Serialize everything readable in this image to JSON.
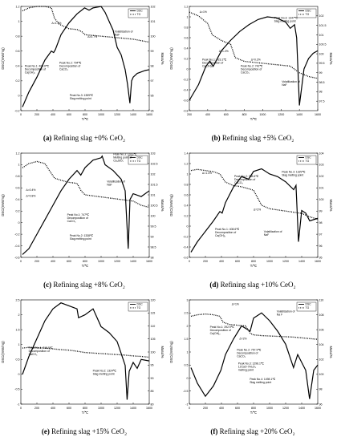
{
  "chart_data": [
    {
      "type": "line",
      "caption_id": "(a)",
      "caption": "Refining slag +0% CeO₂",
      "xlabel": "T/℃",
      "ylabel_left": "DSC/(mW/mg)",
      "ylabel_right": "Mass/%",
      "xlim": [
        0,
        1600
      ],
      "xticks": [
        "0",
        "200",
        "400",
        "600",
        "800",
        "1000",
        "1200",
        "1400",
        "1600"
      ],
      "ylim_left": [
        -0.2,
        1.2
      ],
      "yticks_left": [
        "-0.2",
        "0",
        "0.2",
        "0.4",
        "0.6",
        "0.8",
        "1",
        "1.2"
      ],
      "ylim_right": [
        95,
        102
      ],
      "yticks_right": [
        "95",
        "96",
        "97",
        "98",
        "99",
        "100",
        "101",
        "102"
      ],
      "legend": [
        "DSC",
        "TG"
      ],
      "series": [
        {
          "name": "DSC",
          "style": "solid",
          "axis": "left",
          "x": [
            20,
            100,
            200,
            300,
            380,
            408.6,
            430,
            500,
            600,
            700,
            794,
            850,
            900,
            1000,
            1050,
            1100,
            1150,
            1200,
            1250,
            1300,
            1330,
            1359,
            1380,
            1400,
            1450,
            1500,
            1550,
            1600
          ],
          "y": [
            -0.15,
            0.05,
            0.25,
            0.48,
            0.6,
            0.58,
            0.62,
            0.82,
            0.98,
            1.1,
            1.18,
            1.15,
            1.18,
            1.2,
            1.12,
            1.0,
            0.88,
            0.65,
            0.55,
            0.35,
            0.15,
            -0.1,
            0.2,
            0.25,
            0.3,
            0.32,
            0.34,
            0.35
          ]
        },
        {
          "name": "TG",
          "style": "dotted",
          "axis": "right",
          "x": [
            20,
            100,
            200,
            300,
            380,
            420,
            480,
            600,
            700,
            760,
            800,
            900,
            1000,
            1100,
            1200,
            1300,
            1400,
            1500,
            1600
          ],
          "y": [
            101.7,
            101.9,
            102.0,
            102.0,
            101.9,
            101.2,
            100.8,
            100.5,
            100.45,
            100.3,
            100.1,
            100.05,
            100.0,
            99.95,
            99.9,
            99.85,
            99.8,
            99.7,
            99.6
          ]
        }
      ],
      "annotations": [
        "Δ=1.3%",
        "Δ=0.7%",
        "Volatilization of NaF",
        "Peak No.2: 794℃ Decomposition of CaCO₃",
        "Peak No.1: 408.6℃ Decomposition of Ca(OH)₂",
        "Peak No.3: 1359℃ Slag melting point"
      ]
    },
    {
      "type": "line",
      "caption_id": "(b)",
      "caption": "Refining slag +5% CeO₂",
      "xlabel": "T/℃",
      "ylabel_left": "DSC/(mW/mg)",
      "ylabel_right": "Mass/%",
      "xlim": [
        200,
        1600
      ],
      "xticks": [
        "200",
        "400",
        "600",
        "800",
        "1000",
        "1200",
        "1400",
        "1600"
      ],
      "ylim_left": [
        -0.8,
        1.2
      ],
      "yticks_left": [
        "-0.8",
        "-0.6",
        "-0.4",
        "-0.2",
        "0",
        "0.2",
        "0.4",
        "0.6",
        "0.8",
        "1",
        "1.2"
      ],
      "ylim_right": [
        97,
        102.5
      ],
      "yticks_right": [
        "97.5",
        "98",
        "98.5",
        "99",
        "99.5",
        "100",
        "100.5",
        "101",
        "101.5",
        "102"
      ],
      "legend": [
        "DSC",
        "TG"
      ],
      "series": [
        {
          "name": "DSC",
          "style": "solid",
          "axis": "left",
          "x": [
            200,
            300,
            380,
            423.1,
            460,
            550,
            650,
            750,
            850,
            950,
            1050,
            1150,
            1250,
            1300,
            1347,
            1370,
            1400,
            1450,
            1500,
            1550,
            1600
          ],
          "y": [
            -0.6,
            -0.3,
            0.05,
            0.15,
            0.05,
            0.35,
            0.55,
            0.72,
            0.85,
            0.95,
            1.0,
            0.98,
            0.9,
            0.78,
            0.85,
            0.6,
            -0.7,
            0.0,
            0.2,
            0.3,
            0.35
          ]
        },
        {
          "name": "TG",
          "style": "dotted",
          "axis": "right",
          "x": [
            200,
            300,
            400,
            450,
            550,
            650,
            700,
            800,
            900,
            1000,
            1100,
            1200,
            1300,
            1400,
            1500,
            1600
          ],
          "y": [
            102.2,
            102.0,
            101.6,
            101.0,
            100.7,
            100.5,
            99.8,
            99.6,
            99.55,
            99.5,
            99.45,
            99.4,
            99.35,
            99.0,
            98.8,
            98.7
          ]
        }
      ],
      "annotations": [
        "Δ=1%",
        "Δ=1.2%",
        "Peak No.3: 1347℃ Slag melting point",
        "Peak No.1: 423.1℃ Decomposition of Ca(OH)₂",
        "Peak No.2: 742℃ Decomposition of CaCO₃",
        "Volatilization of NaF",
        "Δ=0.2%"
      ]
    },
    {
      "type": "line",
      "caption_id": "(c)",
      "caption": "Refining slag +8% CeO₂",
      "xlabel": "T/℃",
      "ylabel_left": "DSC/(mW/mg)",
      "ylabel_right": "Mass/%",
      "xlim": [
        0,
        1600
      ],
      "xticks": [
        "0",
        "200",
        "400",
        "600",
        "800",
        "1000",
        "1200",
        "1400",
        "1600"
      ],
      "ylim_left": [
        -0.6,
        1.2
      ],
      "yticks_left": [
        "-0.6",
        "-0.4",
        "-0.2",
        "0",
        "0.2",
        "0.4",
        "0.6",
        "0.8",
        "1",
        "1.2"
      ],
      "ylim_right": [
        98,
        103
      ],
      "yticks_right": [
        "98",
        "98.5",
        "99",
        "99.5",
        "100",
        "100.5",
        "101",
        "101.5",
        "102",
        "102.5",
        "103"
      ],
      "legend": [
        "DSC",
        "TG"
      ],
      "series": [
        {
          "name": "DSC",
          "style": "solid",
          "axis": "left",
          "x": [
            20,
            100,
            200,
            300,
            400,
            500,
            600,
            700,
            747,
            800,
            900,
            1000,
            1013,
            1050,
            1150,
            1250,
            1300,
            1338,
            1360,
            1400,
            1500,
            1600
          ],
          "y": [
            -0.55,
            -0.45,
            -0.2,
            0.05,
            0.3,
            0.55,
            0.75,
            0.9,
            0.82,
            0.95,
            1.08,
            1.12,
            1.15,
            1.0,
            0.9,
            0.75,
            0.55,
            -0.45,
            0.4,
            0.5,
            0.45,
            0.55
          ]
        },
        {
          "name": "TG",
          "style": "dotted",
          "axis": "right",
          "x": [
            20,
            100,
            200,
            300,
            350,
            420,
            500,
            600,
            700,
            750,
            800,
            900,
            1000,
            1100,
            1200,
            1300,
            1400,
            1500,
            1600
          ],
          "y": [
            102.3,
            102.5,
            102.6,
            102.5,
            102.2,
            101.8,
            101.7,
            101.6,
            101.55,
            101.2,
            101.0,
            100.95,
            100.9,
            100.85,
            100.8,
            100.75,
            100.7,
            100.5,
            100.4
          ]
        }
      ],
      "annotations": [
        "Peak No.3: 1013℃ Melting point of Ca₃SiO₅",
        "Volatilization of NaF",
        "Δ=0.4%",
        "Δ=0.8%",
        "Peak No.1: 747℃ Decomposition of CaCO₃",
        "Peak No.2: 1338℃ Slag melting point"
      ]
    },
    {
      "type": "line",
      "caption_id": "(d)",
      "caption": "Refining slag +10% CeO₂",
      "xlabel": "T/℃",
      "ylabel_left": "DSC/(mW/mg)",
      "ylabel_right": "Mass/%",
      "xlim": [
        0,
        1600
      ],
      "xticks": [
        "0",
        "200",
        "400",
        "600",
        "800",
        "1000",
        "1200",
        "1400",
        "1600"
      ],
      "ylim_left": [
        -0.6,
        1.4
      ],
      "yticks_left": [
        "-0.6",
        "-0.4",
        "-0.2",
        "0",
        "0.2",
        "0.4",
        "0.6",
        "0.8",
        "1",
        "1.2",
        "1.4"
      ],
      "ylim_right": [
        95,
        104
      ],
      "yticks_right": [
        "95",
        "96",
        "97",
        "98",
        "99",
        "100",
        "101",
        "102",
        "103",
        "104"
      ],
      "legend": [
        "DSC",
        "TG"
      ],
      "series": [
        {
          "name": "DSC",
          "style": "solid",
          "axis": "left",
          "x": [
            20,
            100,
            200,
            300,
            380,
            408.6,
            450,
            550,
            650,
            738.6,
            800,
            900,
            1000,
            1100,
            1200,
            1300,
            1329,
            1360,
            1400,
            1450,
            1500,
            1600
          ],
          "y": [
            -0.5,
            -0.3,
            -0.1,
            0.1,
            0.28,
            0.25,
            0.45,
            0.75,
            0.95,
            0.9,
            1.05,
            1.1,
            1.0,
            0.95,
            0.85,
            0.7,
            0.78,
            -0.3,
            0.3,
            0.25,
            0.1,
            0.15
          ]
        },
        {
          "name": "TG",
          "style": "dotted",
          "axis": "right",
          "x": [
            20,
            100,
            200,
            300,
            380,
            450,
            550,
            650,
            700,
            800,
            900,
            1000,
            1100,
            1200,
            1300,
            1400,
            1500,
            1600
          ],
          "y": [
            102.5,
            102.6,
            102.5,
            102.4,
            102.2,
            101.5,
            101.2,
            101.1,
            101.0,
            100.8,
            99.5,
            99.2,
            99.1,
            99.0,
            98.9,
            98.8,
            98.5,
            98.3
          ]
        }
      ],
      "annotations": [
        "Δ=1.4%",
        "Peak No.2: 738.6℃ Decomposition of CaCO₃",
        "Peak No.3: 1329℃ Slag melting point",
        "Δ=2%",
        "Peak No.1: 408.6℃ Decomposition of Ca(OH)₂",
        "Volatilization of NaF"
      ]
    },
    {
      "type": "line",
      "caption_id": "(e)",
      "caption": "Refining slag +15% CeO₂",
      "xlabel": "T/℃",
      "ylabel_left": "DSC/(mW/mg)",
      "ylabel_right": "Mass/%",
      "xlim": [
        0,
        1600
      ],
      "xticks": [
        "0",
        "200",
        "400",
        "600",
        "800",
        "1000",
        "1200",
        "1400",
        "1600"
      ],
      "ylim_left": [
        -1,
        2.5
      ],
      "yticks_left": [
        "-1",
        "-0.5",
        "0",
        "0.5",
        "1",
        "1.5",
        "2",
        "2.5"
      ],
      "ylim_right": [
        80,
        120
      ],
      "yticks_right": [
        "80",
        "85",
        "90",
        "95",
        "100",
        "105",
        "110",
        "115",
        "120"
      ],
      "legend": [
        "DSC",
        "TG"
      ],
      "series": [
        {
          "name": "DSC",
          "style": "solid",
          "axis": "left",
          "x": [
            20,
            100,
            200,
            300,
            400,
            500,
            600,
            700,
            718.9,
            800,
            900,
            1000,
            1100,
            1200,
            1250,
            1300,
            1324,
            1350,
            1400,
            1450,
            1500,
            1600
          ],
          "y": [
            0.0,
            0.6,
            1.2,
            1.8,
            2.2,
            2.4,
            2.3,
            2.2,
            1.9,
            2.0,
            2.2,
            1.6,
            1.4,
            1.1,
            0.7,
            0.3,
            -0.85,
            0.1,
            0.4,
            0.2,
            0.5,
            0.45
          ]
        },
        {
          "name": "TG",
          "style": "dotted",
          "axis": "right",
          "x": [
            20,
            100,
            200,
            300,
            400,
            500,
            600,
            700,
            800,
            900,
            1000,
            1100,
            1200,
            1300,
            1400,
            1500,
            1600
          ],
          "y": [
            101.5,
            101.8,
            101.7,
            101.5,
            101.2,
            100.9,
            100.7,
            100.3,
            99.8,
            99.6,
            99.4,
            99.2,
            99.0,
            98.8,
            98.5,
            98.3,
            98.0
          ]
        }
      ],
      "annotations": [
        "Peak No.1: 718.9℃ Decomposition of CaCO₃",
        "Peak No.2: 1324℃ Slag melting point"
      ]
    },
    {
      "type": "line",
      "caption_id": "(f)",
      "caption": "Refining slag +20% CeO₂",
      "xlabel": "T/℃",
      "ylabel_left": "DSC/(mW/mg)",
      "ylabel_right": "Mass/%",
      "xlim": [
        0,
        1600
      ],
      "xticks": [
        "0",
        "200",
        "400",
        "600",
        "800",
        "1000",
        "1200",
        "1400",
        "1600"
      ],
      "ylim_left": [
        -1,
        3
      ],
      "yticks_left": [
        "-1",
        "-0.5",
        "0",
        "0.5",
        "1",
        "1.5",
        "2",
        "2.5",
        "3"
      ],
      "ylim_right": [
        96,
        110
      ],
      "yticks_right": [
        "96",
        "98",
        "100",
        "102",
        "104",
        "106",
        "108",
        "110"
      ],
      "legend": [
        "DSC",
        "TG"
      ],
      "series": [
        {
          "name": "DSC",
          "style": "solid",
          "axis": "left",
          "x": [
            20,
            100,
            200,
            300,
            392.9,
            450,
            550,
            650,
            757.9,
            800,
            900,
            1000,
            1100,
            1200,
            1298.1,
            1350,
            1400,
            1450,
            1498.1,
            1550,
            1600
          ],
          "y": [
            0.4,
            -0.2,
            -0.7,
            -0.3,
            0.3,
            0.9,
            1.5,
            2.0,
            1.8,
            2.3,
            2.5,
            2.2,
            1.8,
            1.3,
            0.4,
            0.9,
            0.6,
            0.3,
            -0.8,
            0.3,
            0.5
          ]
        },
        {
          "name": "TG",
          "style": "dotted",
          "axis": "right",
          "x": [
            20,
            100,
            200,
            300,
            380,
            420,
            500,
            600,
            700,
            760,
            800,
            900,
            1000,
            1100,
            1200,
            1300,
            1400,
            1500,
            1600
          ],
          "y": [
            107.8,
            108.0,
            108.1,
            108.0,
            107.8,
            107.0,
            106.7,
            106.6,
            106.5,
            105.5,
            105.3,
            105.2,
            105.15,
            105.1,
            105.05,
            105.0,
            104.9,
            104.8,
            104.7
          ]
        }
      ],
      "annotations": [
        "Δ=1%",
        "Volatilization of Na F",
        "Peak No.1: 392.9℃ Decomposition of Ca(OH)₂",
        "Δ=2%",
        "Peak No.2: 757.9℃ Decomposition of CaCO₃",
        "Peak No.3: 1298.1℃ 12CaO·7Al₂O₃ melting point",
        "Peak No.4: 1498.1℃ Slag melting point"
      ]
    }
  ]
}
